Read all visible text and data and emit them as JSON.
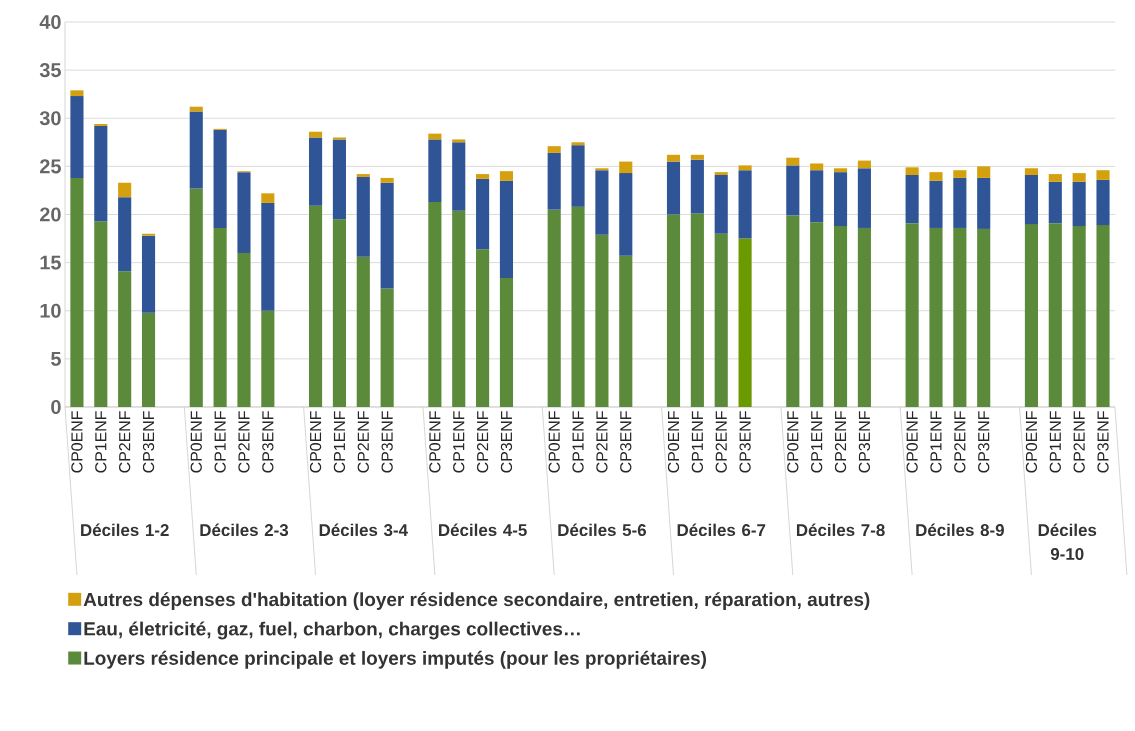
{
  "chart_data": {
    "type": "bar",
    "stacked": true,
    "categories": [
      "CP0ENF",
      "CP1ENF",
      "CP2ENF",
      "CP3ENF",
      "CP0ENF",
      "CP1ENF",
      "CP2ENF",
      "CP3ENF",
      "CP0ENF",
      "CP1ENF",
      "CP2ENF",
      "CP3ENF",
      "CP0ENF",
      "CP1ENF",
      "CP2ENF",
      "CP3ENF",
      "CP0ENF",
      "CP1ENF",
      "CP2ENF",
      "CP3ENF",
      "CP0ENF",
      "CP1ENF",
      "CP2ENF",
      "CP3ENF",
      "CP0ENF",
      "CP1ENF",
      "CP2ENF",
      "CP3ENF",
      "CP0ENF",
      "CP1ENF",
      "CP2ENF",
      "CP3ENF",
      "CP0ENF",
      "CP1ENF",
      "CP2ENF",
      "CP3ENF"
    ],
    "annotations": [
      "Déciles 1-2",
      "Déciles 2-3",
      "Déciles 3-4",
      "Déciles 4-5",
      "Déciles 5-6",
      "Déciles 6-7",
      "Déciles 7-8",
      "Déciles 8-9",
      "Déciles 9-10"
    ],
    "series": [
      {
        "name": "Loyers résidence principale et loyers imputés (pour les propriétaires)",
        "color": "#5b8a3a",
        "colors": [
          "#5b8a3a",
          "#5b8a3a",
          "#5b8a3a",
          "#5b8a3a",
          "#5b8a3a",
          "#5b8a3a",
          "#5b8a3a",
          "#5b8a3a",
          "#5b8a3a",
          "#5b8a3a",
          "#5b8a3a",
          "#5b8a3a",
          "#5b8a3a",
          "#5b8a3a",
          "#5b8a3a",
          "#5b8a3a",
          "#5b8a3a",
          "#5b8a3a",
          "#5b8a3a",
          "#5b8a3a",
          "#5b8a3a",
          "#5b8a3a",
          "#5b8a3a",
          "#6a9a00",
          "#5b8a3a",
          "#5b8a3a",
          "#5b8a3a",
          "#5b8a3a",
          "#5b8a3a",
          "#5b8a3a",
          "#5b8a3a",
          "#5b8a3a",
          "#5b8a3a",
          "#5b8a3a",
          "#5b8a3a",
          "#5b8a3a"
        ],
        "values": [
          23.8,
          19.3,
          14.1,
          9.8,
          22.7,
          18.6,
          16.0,
          10.0,
          20.9,
          19.5,
          15.6,
          12.3,
          21.3,
          20.4,
          16.4,
          13.4,
          20.5,
          20.8,
          17.9,
          15.7,
          20.0,
          20.1,
          18.0,
          17.5,
          19.9,
          19.2,
          18.8,
          18.6,
          19.1,
          18.6,
          18.6,
          18.5,
          19.0,
          19.1,
          18.8,
          18.9
        ]
      },
      {
        "name": "Eau, életricité, gaz, fuel, charbon, charges collectives…",
        "color": "#2f5597",
        "values": [
          8.5,
          9.9,
          7.7,
          8.0,
          8.0,
          10.2,
          8.4,
          11.2,
          7.1,
          8.3,
          8.3,
          11.0,
          6.5,
          7.1,
          7.3,
          10.1,
          5.9,
          6.4,
          6.7,
          8.6,
          5.5,
          5.6,
          6.1,
          7.1,
          5.2,
          5.4,
          5.6,
          6.2,
          5.0,
          4.9,
          5.2,
          5.3,
          5.1,
          4.3,
          4.6,
          4.7
        ]
      },
      {
        "name": "Autres dépenses d'habitation (loyer résidence secondaire, entretien, réparation, autres)",
        "color": "#d4a00e",
        "values": [
          0.6,
          0.2,
          1.5,
          0.2,
          0.5,
          0.1,
          0.1,
          1.0,
          0.6,
          0.2,
          0.3,
          0.5,
          0.6,
          0.3,
          0.5,
          1.0,
          0.7,
          0.3,
          0.2,
          1.2,
          0.7,
          0.5,
          0.3,
          0.5,
          0.8,
          0.7,
          0.4,
          0.8,
          0.8,
          0.9,
          0.8,
          1.2,
          0.7,
          0.8,
          0.9,
          1.0
        ]
      }
    ],
    "ylim": [
      0,
      40
    ],
    "yticks": [
      0,
      5,
      10,
      15,
      20,
      25,
      30,
      35,
      40
    ],
    "grid": "y",
    "legend": "bottom"
  }
}
